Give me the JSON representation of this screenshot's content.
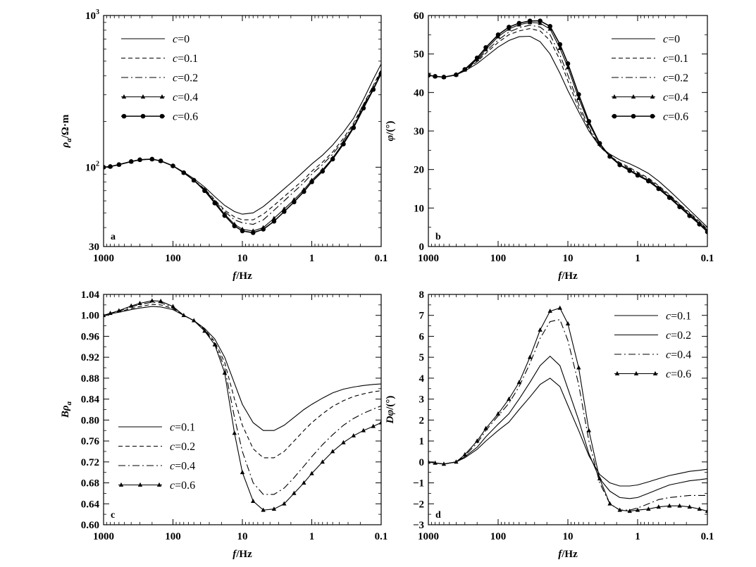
{
  "chart_data": [
    {
      "panel": "a",
      "type": "line",
      "x_scale": "log",
      "y_scale": "log",
      "x_reversed": true,
      "xlim": [
        1000,
        0.1
      ],
      "ylim": [
        30,
        1000
      ],
      "xticks": [
        {
          "v": 1000,
          "label": "1000"
        },
        {
          "v": 100,
          "label": "100"
        },
        {
          "v": 10,
          "label": "10"
        },
        {
          "v": 1,
          "label": "1"
        },
        {
          "v": 0.1,
          "label": "0.1"
        }
      ],
      "yticks": [
        {
          "v": 30,
          "label": "30"
        },
        {
          "v": 100,
          "label": "10²"
        },
        {
          "v": 1000,
          "label": "10³"
        }
      ],
      "xlabel": {
        "italic": "f",
        "rest": "/Hz"
      },
      "ylabel": {
        "italic": "ρ",
        "sub": "a",
        "rest": "/Ω·m"
      },
      "legend_position": "top-left",
      "x": [
        1000,
        800,
        600,
        400,
        300,
        200,
        150,
        100,
        70,
        50,
        35,
        25,
        18,
        13,
        10,
        7,
        5,
        3.5,
        2.5,
        1.8,
        1.3,
        1,
        0.7,
        0.5,
        0.35,
        0.25,
        0.18,
        0.13,
        0.1
      ],
      "series": [
        {
          "name": "c=0",
          "style": "solid",
          "marker": "none",
          "values": [
            100,
            101,
            104,
            109,
            112,
            113,
            110,
            102,
            93,
            84,
            74,
            64,
            56,
            51,
            49,
            50,
            55,
            63,
            72,
            82,
            94,
            105,
            120,
            140,
            170,
            210,
            280,
            380,
            480
          ]
        },
        {
          "name": "c=0.1",
          "style": "dash",
          "marker": "none",
          "values": [
            100,
            101,
            104,
            109,
            112,
            113,
            110,
            102,
            92,
            82,
            72,
            61,
            52,
            47,
            45,
            45,
            49,
            56,
            64,
            73,
            83,
            94,
            108,
            126,
            155,
            195,
            260,
            345,
            440
          ]
        },
        {
          "name": "c=0.2",
          "style": "dashdot",
          "marker": "none",
          "values": [
            100,
            101,
            104,
            109,
            112,
            113,
            110,
            102,
            92,
            82,
            71,
            60,
            51,
            45,
            43,
            42,
            45,
            52,
            60,
            69,
            79,
            90,
            104,
            122,
            150,
            190,
            255,
            340,
            430
          ]
        },
        {
          "name": "c=0.4",
          "style": "solid",
          "marker": "triangle",
          "values": [
            100,
            101,
            104,
            109,
            112,
            113,
            110,
            102,
            92,
            82,
            71,
            59,
            49,
            42,
            39,
            38,
            40,
            46,
            53,
            61,
            71,
            82,
            96,
            115,
            145,
            185,
            250,
            330,
            420
          ]
        },
        {
          "name": "c=0.6",
          "style": "solid",
          "marker": "circle",
          "values": [
            100,
            101,
            104,
            109,
            112,
            113,
            110,
            102,
            92,
            82,
            70,
            58,
            48,
            41,
            38,
            37,
            39,
            44,
            51,
            59,
            69,
            80,
            94,
            113,
            142,
            182,
            245,
            325,
            415
          ]
        }
      ]
    },
    {
      "panel": "b",
      "type": "line",
      "x_scale": "log",
      "y_scale": "linear",
      "x_reversed": true,
      "xlim": [
        1000,
        0.1
      ],
      "ylim": [
        0,
        60
      ],
      "xticks": [
        {
          "v": 1000,
          "label": "1000"
        },
        {
          "v": 100,
          "label": "100"
        },
        {
          "v": 10,
          "label": "10"
        },
        {
          "v": 1,
          "label": "1"
        },
        {
          "v": 0.1,
          "label": "0.1"
        }
      ],
      "yticks": [
        {
          "v": 0,
          "label": "0"
        },
        {
          "v": 10,
          "label": "10"
        },
        {
          "v": 20,
          "label": "20"
        },
        {
          "v": 30,
          "label": "30"
        },
        {
          "v": 40,
          "label": "40"
        },
        {
          "v": 50,
          "label": "50"
        },
        {
          "v": 60,
          "label": "60"
        }
      ],
      "xlabel": {
        "italic": "f",
        "rest": "/Hz"
      },
      "ylabel": {
        "italic": "φ",
        "rest": "/(°)"
      },
      "legend_position": "top-right",
      "x": [
        1000,
        800,
        600,
        400,
        300,
        200,
        150,
        100,
        70,
        50,
        35,
        25,
        18,
        13,
        10,
        7,
        5,
        3.5,
        2.5,
        1.8,
        1.3,
        1,
        0.7,
        0.5,
        0.35,
        0.25,
        0.18,
        0.13,
        0.1
      ],
      "series": [
        {
          "name": "c=0",
          "style": "solid",
          "marker": "none",
          "values": [
            44.5,
            44.2,
            44.0,
            44.6,
            45.6,
            47.5,
            49.3,
            51.8,
            53.5,
            54.5,
            54.6,
            53.2,
            50.0,
            45.0,
            40.5,
            35.0,
            30.0,
            26.0,
            24.0,
            22.5,
            21.5,
            20.5,
            19.0,
            17.0,
            14.5,
            12.0,
            9.5,
            7.0,
            5.0
          ]
        },
        {
          "name": "c=0.1",
          "style": "dash",
          "marker": "none",
          "values": [
            44.5,
            44.2,
            44.0,
            44.6,
            45.7,
            48.0,
            50.2,
            53.0,
            55.0,
            56.0,
            56.6,
            56.0,
            53.5,
            48.5,
            43.0,
            36.0,
            30.5,
            26.0,
            23.5,
            21.8,
            20.5,
            19.3,
            17.8,
            15.8,
            13.5,
            11.0,
            8.8,
            6.5,
            4.5
          ]
        },
        {
          "name": "c=0.2",
          "style": "dashdot",
          "marker": "none",
          "values": [
            44.5,
            44.2,
            44.0,
            44.6,
            45.8,
            48.3,
            50.7,
            53.6,
            55.7,
            56.8,
            57.5,
            57.0,
            55.0,
            49.8,
            44.5,
            37.0,
            31.0,
            26.2,
            23.5,
            21.5,
            20.2,
            19.0,
            17.5,
            15.5,
            13.2,
            10.8,
            8.5,
            6.2,
            4.3
          ]
        },
        {
          "name": "c=0.4",
          "style": "solid",
          "marker": "triangle",
          "values": [
            44.5,
            44.2,
            44.0,
            44.6,
            45.9,
            48.6,
            51.2,
            54.5,
            56.5,
            57.6,
            58.2,
            58.0,
            56.5,
            51.5,
            46.5,
            38.5,
            32.0,
            26.6,
            23.4,
            21.3,
            19.9,
            18.7,
            17.2,
            15.2,
            12.9,
            10.5,
            8.2,
            6.0,
            4.0
          ]
        },
        {
          "name": "c=0.6",
          "style": "solid",
          "marker": "circle",
          "values": [
            44.5,
            44.2,
            44.0,
            44.6,
            46.0,
            49.0,
            51.7,
            55.0,
            57.0,
            58.0,
            58.6,
            58.6,
            57.2,
            52.5,
            47.5,
            39.5,
            32.5,
            26.8,
            23.4,
            21.2,
            19.7,
            18.5,
            17.0,
            15.0,
            12.7,
            10.3,
            8.0,
            5.8,
            3.8
          ]
        }
      ]
    },
    {
      "panel": "c",
      "type": "line",
      "x_scale": "log",
      "y_scale": "linear",
      "x_reversed": true,
      "xlim": [
        1000,
        0.1
      ],
      "ylim": [
        0.6,
        1.04
      ],
      "xticks": [
        {
          "v": 1000,
          "label": "1000"
        },
        {
          "v": 100,
          "label": "100"
        },
        {
          "v": 10,
          "label": "10"
        },
        {
          "v": 1,
          "label": "1"
        },
        {
          "v": 0.1,
          "label": "0.1"
        }
      ],
      "yticks": [
        {
          "v": 0.6,
          "label": "0.60"
        },
        {
          "v": 0.64,
          "label": "0.64"
        },
        {
          "v": 0.68,
          "label": "0.68"
        },
        {
          "v": 0.72,
          "label": "0.72"
        },
        {
          "v": 0.76,
          "label": "0.76"
        },
        {
          "v": 0.8,
          "label": "0.80"
        },
        {
          "v": 0.84,
          "label": "0.84"
        },
        {
          "v": 0.88,
          "label": "0.88"
        },
        {
          "v": 0.92,
          "label": "0.92"
        },
        {
          "v": 0.96,
          "label": "0.96"
        },
        {
          "v": 1.0,
          "label": "1.00"
        },
        {
          "v": 1.04,
          "label": "1.04"
        }
      ],
      "xlabel": {
        "italic": "f",
        "rest": "/Hz"
      },
      "ylabel": {
        "italic": "Bρ",
        "sub": "a",
        "rest": ""
      },
      "legend_position": "bottom-left",
      "x": [
        1000,
        800,
        600,
        400,
        300,
        200,
        150,
        100,
        70,
        50,
        35,
        25,
        18,
        13,
        10,
        7,
        5,
        3.5,
        2.5,
        1.8,
        1.3,
        1,
        0.7,
        0.5,
        0.35,
        0.25,
        0.18,
        0.13,
        0.1
      ],
      "series": [
        {
          "name": "c=0.1",
          "style": "solid",
          "marker": "none",
          "values": [
            1.0,
            1.003,
            1.006,
            1.011,
            1.014,
            1.017,
            1.016,
            1.011,
            1.0,
            0.99,
            0.975,
            0.955,
            0.92,
            0.87,
            0.83,
            0.795,
            0.78,
            0.78,
            0.79,
            0.805,
            0.82,
            0.83,
            0.842,
            0.852,
            0.859,
            0.863,
            0.866,
            0.868,
            0.869
          ]
        },
        {
          "name": "c=0.2",
          "style": "dash",
          "marker": "none",
          "values": [
            1.0,
            1.003,
            1.007,
            1.013,
            1.017,
            1.021,
            1.02,
            1.013,
            1.0,
            0.99,
            0.973,
            0.95,
            0.91,
            0.84,
            0.79,
            0.745,
            0.728,
            0.728,
            0.74,
            0.76,
            0.78,
            0.795,
            0.812,
            0.826,
            0.837,
            0.845,
            0.85,
            0.854,
            0.856
          ]
        },
        {
          "name": "c=0.4",
          "style": "dashdot",
          "marker": "none",
          "values": [
            1.0,
            1.004,
            1.008,
            1.016,
            1.021,
            1.025,
            1.024,
            1.015,
            1.0,
            0.99,
            0.972,
            0.947,
            0.9,
            0.805,
            0.74,
            0.68,
            0.658,
            0.658,
            0.67,
            0.69,
            0.712,
            0.73,
            0.753,
            0.772,
            0.79,
            0.803,
            0.813,
            0.821,
            0.827
          ]
        },
        {
          "name": "c=0.6",
          "style": "solid",
          "marker": "triangle",
          "values": [
            1.0,
            1.004,
            1.009,
            1.018,
            1.023,
            1.028,
            1.027,
            1.017,
            1.0,
            0.99,
            0.97,
            0.944,
            0.89,
            0.775,
            0.7,
            0.645,
            0.628,
            0.63,
            0.64,
            0.66,
            0.68,
            0.698,
            0.72,
            0.74,
            0.757,
            0.77,
            0.78,
            0.788,
            0.795
          ]
        }
      ]
    },
    {
      "panel": "d",
      "type": "line",
      "x_scale": "log",
      "y_scale": "linear",
      "x_reversed": true,
      "xlim": [
        1000,
        0.1
      ],
      "ylim": [
        -3,
        8
      ],
      "xticks": [
        {
          "v": 1000,
          "label": "1000"
        },
        {
          "v": 100,
          "label": "100"
        },
        {
          "v": 10,
          "label": "10"
        },
        {
          "v": 1,
          "label": "1"
        },
        {
          "v": 0.1,
          "label": "0.1"
        }
      ],
      "yticks": [
        {
          "v": -3,
          "label": "−3"
        },
        {
          "v": -2,
          "label": "−2"
        },
        {
          "v": -1,
          "label": "−1"
        },
        {
          "v": 0,
          "label": "0"
        },
        {
          "v": 1,
          "label": "1"
        },
        {
          "v": 2,
          "label": "2"
        },
        {
          "v": 3,
          "label": "3"
        },
        {
          "v": 4,
          "label": "4"
        },
        {
          "v": 5,
          "label": "5"
        },
        {
          "v": 6,
          "label": "6"
        },
        {
          "v": 7,
          "label": "7"
        },
        {
          "v": 8,
          "label": "8"
        }
      ],
      "xlabel": {
        "italic": "f",
        "rest": "/Hz"
      },
      "ylabel": {
        "italic": "Dφ",
        "rest": "/(°)"
      },
      "legend_position": "top-right",
      "x": [
        1000,
        800,
        600,
        400,
        300,
        200,
        150,
        100,
        70,
        50,
        35,
        25,
        18,
        13,
        10,
        7,
        5,
        3.5,
        2.5,
        1.8,
        1.3,
        1,
        0.7,
        0.5,
        0.35,
        0.25,
        0.18,
        0.13,
        0.1
      ],
      "series": [
        {
          "name": "c=0.1",
          "style": "solid",
          "marker": "none",
          "values": [
            0,
            -0.05,
            -0.1,
            0,
            0.2,
            0.6,
            1.0,
            1.5,
            1.9,
            2.5,
            3.1,
            3.7,
            4.0,
            3.6,
            2.7,
            1.5,
            0.3,
            -0.6,
            -1.0,
            -1.15,
            -1.15,
            -1.1,
            -0.95,
            -0.8,
            -0.65,
            -0.55,
            -0.45,
            -0.4,
            -0.35
          ]
        },
        {
          "name": "c=0.2",
          "style": "solid",
          "marker": "none",
          "values": [
            0,
            -0.05,
            -0.1,
            0,
            0.25,
            0.7,
            1.2,
            1.8,
            2.3,
            3.0,
            3.8,
            4.6,
            5.05,
            4.6,
            3.5,
            2.0,
            0.4,
            -0.8,
            -1.4,
            -1.7,
            -1.75,
            -1.7,
            -1.5,
            -1.3,
            -1.1,
            -1.0,
            -0.9,
            -0.85,
            -0.8
          ]
        },
        {
          "name": "c=0.4",
          "style": "dashdot",
          "marker": "none",
          "values": [
            0,
            -0.05,
            -0.1,
            0,
            0.3,
            0.9,
            1.5,
            2.2,
            2.8,
            3.6,
            4.7,
            5.9,
            6.7,
            6.8,
            5.8,
            3.7,
            1.0,
            -1.0,
            -2.0,
            -2.3,
            -2.3,
            -2.2,
            -2.0,
            -1.8,
            -1.7,
            -1.65,
            -1.6,
            -1.6,
            -1.6
          ]
        },
        {
          "name": "c=0.6",
          "style": "solid",
          "marker": "triangle",
          "values": [
            0,
            -0.05,
            -0.1,
            0,
            0.35,
            1.0,
            1.6,
            2.3,
            3.0,
            3.8,
            5.0,
            6.3,
            7.2,
            7.35,
            6.6,
            4.5,
            1.5,
            -0.8,
            -2.0,
            -2.3,
            -2.35,
            -2.3,
            -2.25,
            -2.15,
            -2.1,
            -2.1,
            -2.15,
            -2.25,
            -2.35
          ]
        }
      ]
    }
  ]
}
